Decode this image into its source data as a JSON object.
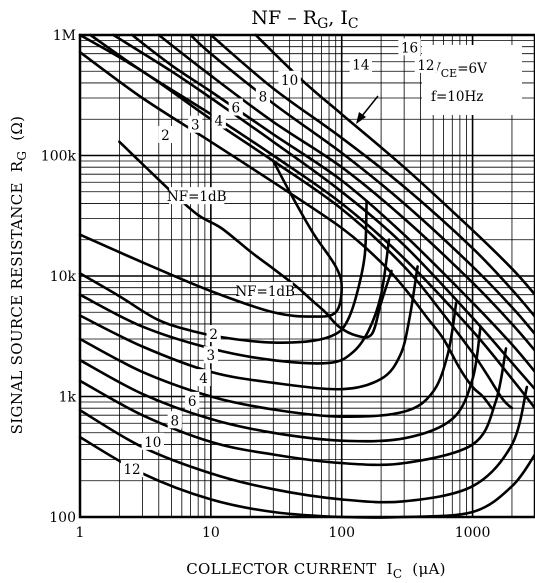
{
  "chart_data": {
    "type": "line",
    "title": "NF – R",
    "title_sub_1": "G",
    "title_mid": ", I",
    "title_sub_2": "C",
    "xlabel": "COLLECTOR CURRENT",
    "xlabel_symbol": "I",
    "xlabel_symbol_sub": "C",
    "xlabel_unit": "(μA)",
    "ylabel": "SIGNAL SOURCE RESISTANCE",
    "ylabel_symbol": "R",
    "ylabel_symbol_sub": "G",
    "ylabel_unit": "(Ω)",
    "x_scale": "log",
    "y_scale": "log",
    "xlim": [
      1,
      3000
    ],
    "ylim": [
      100,
      1000000
    ],
    "grid": true,
    "x_ticks": [
      {
        "value": 1,
        "label": "1"
      },
      {
        "value": 10,
        "label": "10"
      },
      {
        "value": 100,
        "label": "100"
      },
      {
        "value": 1000,
        "label": "1000"
      }
    ],
    "y_ticks": [
      {
        "value": 100,
        "label": "100"
      },
      {
        "value": 1000,
        "label": "1k"
      },
      {
        "value": 10000,
        "label": "10k"
      },
      {
        "value": 100000,
        "label": "100k"
      },
      {
        "value": 1000000,
        "label": "1M"
      }
    ],
    "conditions": {
      "vce_symbol": "V",
      "vce_sub": "CE",
      "vce_value": "=6V",
      "freq": "f=10Hz"
    },
    "upper_family": [
      {
        "name": "NF=1dB",
        "x": [
          2,
          3,
          5,
          8,
          12,
          20,
          30,
          45,
          60,
          75,
          95,
          130,
          170,
          200,
          240
        ],
        "y": [
          130000,
          85000,
          50000,
          32000,
          25000,
          16000,
          11500,
          8200,
          6200,
          5000,
          3800,
          3200,
          3300,
          6000,
          11000
        ]
      },
      {
        "name": "2",
        "x": [
          1,
          3,
          10,
          30,
          100,
          200,
          300,
          450,
          600,
          800,
          1000,
          1200,
          1400
        ],
        "y": [
          720000,
          300000,
          130000,
          60000,
          25000,
          13000,
          8000,
          4500,
          3000,
          1700,
          1200,
          1000,
          800
        ]
      },
      {
        "name": "3",
        "x": [
          1,
          3,
          10,
          30,
          100,
          300,
          600,
          1000,
          1300,
          1700,
          2000
        ],
        "y": [
          1000000,
          500000,
          200000,
          90000,
          36000,
          12000,
          4800,
          2300,
          1500,
          950,
          800
        ]
      },
      {
        "name": "4",
        "x": [
          1.2,
          3,
          10,
          30,
          100,
          300,
          1000,
          2000,
          3000
        ],
        "y": [
          1000000,
          500000,
          220000,
          100000,
          40000,
          14000,
          3500,
          1400,
          800
        ]
      },
      {
        "name": "6",
        "x": [
          1.8,
          5,
          10,
          30,
          100,
          300,
          1000,
          2000,
          3000
        ],
        "y": [
          1000000,
          500000,
          300000,
          130000,
          50000,
          18000,
          4500,
          1900,
          1150
        ]
      },
      {
        "name": "8",
        "x": [
          2.5,
          5,
          10,
          30,
          100,
          300,
          1000,
          2000,
          3000
        ],
        "y": [
          1000000,
          560000,
          340000,
          150000,
          62000,
          22000,
          6000,
          2700,
          1600
        ]
      },
      {
        "name": "10",
        "x": [
          4,
          10,
          30,
          100,
          300,
          1000,
          2000,
          3000
        ],
        "y": [
          1000000,
          460000,
          190000,
          80000,
          30000,
          8800,
          4000,
          2400
        ]
      },
      {
        "name": "12",
        "x": [
          7,
          10,
          30,
          100,
          300,
          1000,
          2000,
          3000
        ],
        "y": [
          1000000,
          700000,
          270000,
          105000,
          40000,
          12000,
          5500,
          3300
        ]
      },
      {
        "name": "14",
        "x": [
          10,
          30,
          100,
          300,
          1000,
          2000,
          3000
        ],
        "y": [
          1000000,
          360000,
          140000,
          55000,
          17000,
          7700,
          4600
        ]
      },
      {
        "name": "16",
        "x": [
          22,
          50,
          100,
          300,
          1000,
          2000,
          3000
        ],
        "y": [
          1000000,
          420000,
          220000,
          80000,
          24000,
          11500,
          7000
        ]
      }
    ],
    "lower_family": [
      {
        "name": "NF=1dB",
        "x": [
          1,
          3,
          10,
          30,
          60,
          90,
          100,
          90,
          60,
          40,
          30
        ],
        "y": [
          22000,
          13000,
          7500,
          5000,
          4600,
          5000,
          8000,
          12000,
          23000,
          50000,
          90000
        ]
      },
      {
        "name": "2",
        "x": [
          1,
          2,
          4,
          8,
          15,
          30,
          60,
          90,
          110,
          130,
          150,
          155
        ],
        "y": [
          10500,
          6800,
          4300,
          3400,
          3000,
          2800,
          2900,
          3300,
          4200,
          7000,
          15000,
          42000
        ]
      },
      {
        "name": "3",
        "x": [
          1,
          3,
          10,
          30,
          80,
          120,
          160,
          200,
          230
        ],
        "y": [
          7000,
          3800,
          2500,
          2000,
          1900,
          2300,
          3500,
          7000,
          20000
        ]
      },
      {
        "name": "4",
        "x": [
          1,
          3,
          10,
          30,
          100,
          200,
          280,
          330,
          380
        ],
        "y": [
          4700,
          2600,
          1600,
          1300,
          1150,
          1400,
          2200,
          4500,
          12000
        ]
      },
      {
        "name": "6",
        "x": [
          1,
          3,
          10,
          30,
          100,
          300,
          500,
          650,
          750
        ],
        "y": [
          3000,
          1600,
          1000,
          780,
          680,
          750,
          1100,
          2300,
          6000
        ]
      },
      {
        "name": "8",
        "x": [
          1,
          3,
          10,
          30,
          100,
          300,
          700,
          1000,
          1150
        ],
        "y": [
          2000,
          1050,
          650,
          500,
          430,
          450,
          650,
          1400,
          3800
        ]
      },
      {
        "name": "10",
        "x": [
          1,
          3,
          10,
          30,
          100,
          300,
          1000,
          1500,
          1800
        ],
        "y": [
          1350,
          700,
          420,
          330,
          280,
          280,
          400,
          900,
          2500
        ]
      },
      {
        "name": "12",
        "x": [
          1,
          3,
          10,
          30,
          100,
          300,
          1000,
          2000,
          2600
        ],
        "y": [
          770,
          380,
          230,
          170,
          140,
          135,
          180,
          400,
          1200
        ]
      },
      {
        "name": "",
        "x": [
          1,
          3,
          10,
          30,
          100,
          300,
          1000,
          2000,
          3000
        ],
        "y": [
          460,
          230,
          140,
          110,
          100,
          100,
          110,
          180,
          330
        ]
      }
    ],
    "upper_labels": [
      {
        "text": "NF=1dB",
        "x": 7.8,
        "y": 46000
      },
      {
        "text": "2",
        "x": 4.5,
        "y": 148000
      },
      {
        "text": "3",
        "x": 7.6,
        "y": 180000
      },
      {
        "text": "4",
        "x": 11.5,
        "y": 195000
      },
      {
        "text": "6",
        "x": 15.5,
        "y": 250000
      },
      {
        "text": "8",
        "x": 25,
        "y": 310000
      },
      {
        "text": "10",
        "x": 40,
        "y": 425000
      },
      {
        "text": "14",
        "x": 140,
        "y": 570000
      },
      {
        "text": "16",
        "x": 330,
        "y": 790000
      },
      {
        "text": "12",
        "x": 440,
        "y": 565000
      }
    ],
    "lower_labels": [
      {
        "text": "NF=1dB",
        "x": 26,
        "y": 7500
      },
      {
        "text": "2",
        "x": 10.5,
        "y": 3300
      },
      {
        "text": "3",
        "x": 10,
        "y": 2200
      },
      {
        "text": "4",
        "x": 8.8,
        "y": 1420
      },
      {
        "text": "6",
        "x": 7.2,
        "y": 920
      },
      {
        "text": "8",
        "x": 5.3,
        "y": 635
      },
      {
        "text": "10",
        "x": 3.6,
        "y": 420
      },
      {
        "text": "12",
        "x": 2.5,
        "y": 250
      }
    ]
  }
}
